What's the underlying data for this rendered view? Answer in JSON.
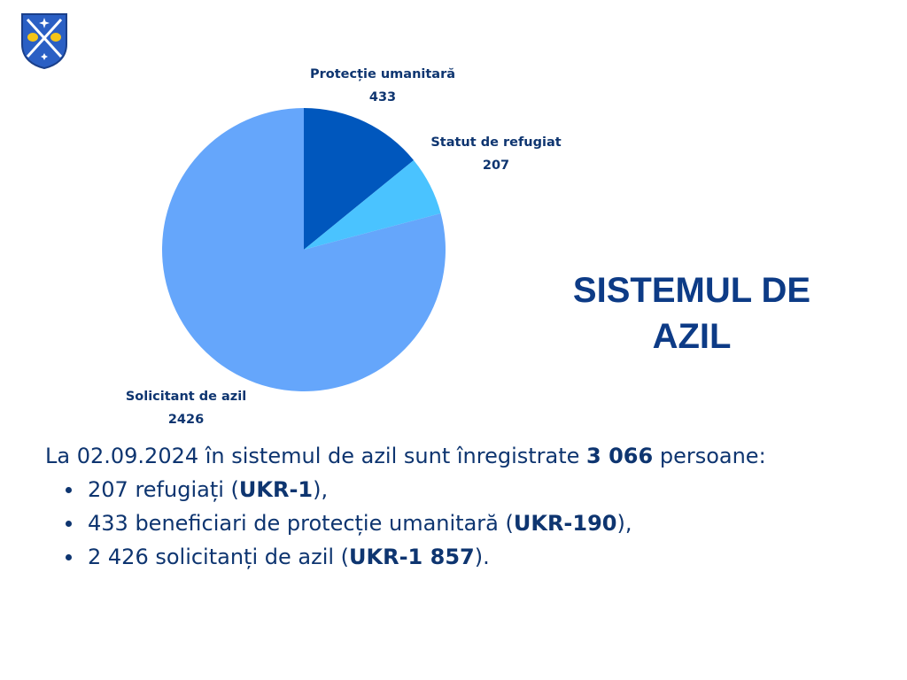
{
  "title_lines": [
    "SISTEMUL DE",
    "AZIL"
  ],
  "chart_data": {
    "type": "pie",
    "slices": [
      {
        "label": "Protecție umanitară",
        "value": 433,
        "value_label": "433",
        "color": "#0057bd"
      },
      {
        "label": "Statut de refugiat",
        "value": 207,
        "value_label": "207",
        "color": "#4ac3ff"
      },
      {
        "label": "Solicitant de azil",
        "value": 2426,
        "value_label": "2426",
        "color": "#65a6fb"
      }
    ]
  },
  "summary": {
    "intro": {
      "prefix": "La 02.09.2024 în sistemul de azil sunt înregistrate ",
      "total": "3 066",
      "suffix": " persoane:"
    },
    "items": [
      {
        "text": "207 refugiați (",
        "bold": "UKR-1",
        "end": "),"
      },
      {
        "text": "433 beneficiari de protecție umanitară (",
        "bold": "UKR-190",
        "end": "),"
      },
      {
        "text": "2 426 solicitanți de azil (",
        "bold": "UKR-1 857",
        "end": ")."
      }
    ]
  },
  "logo": {
    "icon": "coat-of-arms-icon",
    "colors": {
      "field": "#2a5fc4",
      "bird": "#f5c518",
      "accent": "#ffffff"
    }
  }
}
